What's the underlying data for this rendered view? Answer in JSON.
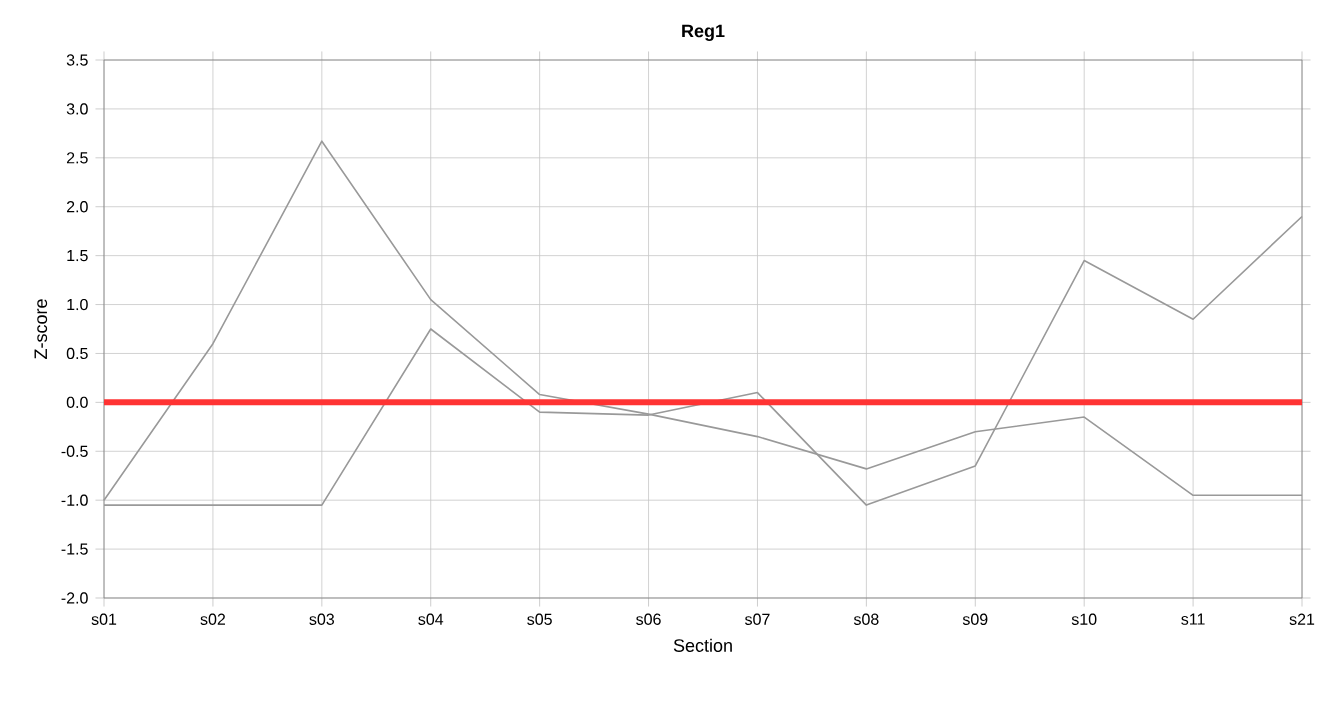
{
  "chart_data": {
    "type": "line",
    "title": "Reg1",
    "xlabel": "Section",
    "ylabel": "Z-score",
    "categories": [
      "s01",
      "s02",
      "s03",
      "s04",
      "s05",
      "s06",
      "s07",
      "s08",
      "s09",
      "s10",
      "s11",
      "s21"
    ],
    "series": [
      {
        "color": "#999999",
        "values": [
          -1.0,
          0.6,
          2.67,
          1.05,
          0.08,
          -0.12,
          -0.35,
          -0.68,
          -0.3,
          -0.15,
          -0.95,
          -0.95
        ]
      },
      {
        "color": "#999999",
        "values": [
          -1.05,
          -1.05,
          -1.05,
          0.75,
          -0.1,
          -0.13,
          0.1,
          -1.05,
          -0.65,
          1.45,
          0.85,
          1.9
        ]
      }
    ],
    "ylim": [
      -2.0,
      3.5
    ],
    "yticks": [
      {
        "value": -2.0,
        "label": "-2.0"
      },
      {
        "value": -1.5,
        "label": "-1.5"
      },
      {
        "value": -1.0,
        "label": "-1.0"
      },
      {
        "value": -0.5,
        "label": "-0.5"
      },
      {
        "value": 0.0,
        "label": "0.0"
      },
      {
        "value": 0.5,
        "label": "0.5"
      },
      {
        "value": 1.0,
        "label": "1.0"
      },
      {
        "value": 1.5,
        "label": "1.5"
      },
      {
        "value": 2.0,
        "label": "2.0"
      },
      {
        "value": 2.5,
        "label": "2.5"
      },
      {
        "value": 3.0,
        "label": "3.0"
      },
      {
        "value": 3.5,
        "label": "3.5"
      }
    ],
    "ref_lines": [
      {
        "axis": "y",
        "value": 0.0,
        "color": "#ff3333"
      }
    ],
    "grid": true,
    "marker": "none",
    "line_style": "solid"
  }
}
